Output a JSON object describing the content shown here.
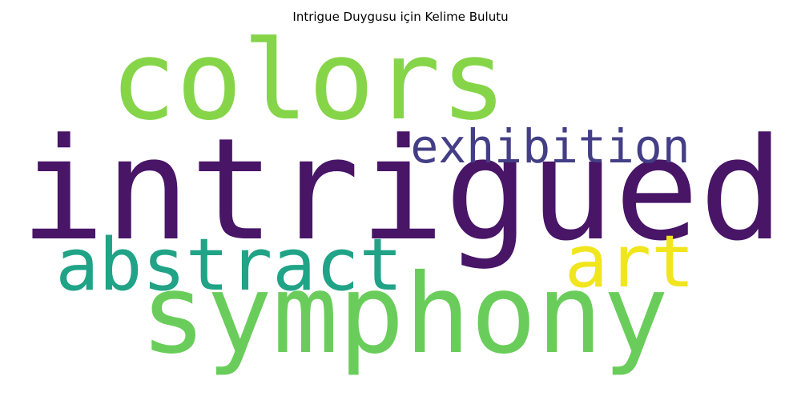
{
  "title": "Intrigue Duygusu için Kelime Bulutu",
  "words": [
    {
      "text": "intrigued",
      "color": "#481567"
    },
    {
      "text": "symphony",
      "color": "#6ACD5B"
    },
    {
      "text": "colors",
      "color": "#86D549"
    },
    {
      "text": "exhibition",
      "color": "#433E85"
    },
    {
      "text": "abstract",
      "color": "#20A386"
    },
    {
      "text": "art",
      "color": "#F1E51D"
    }
  ]
}
